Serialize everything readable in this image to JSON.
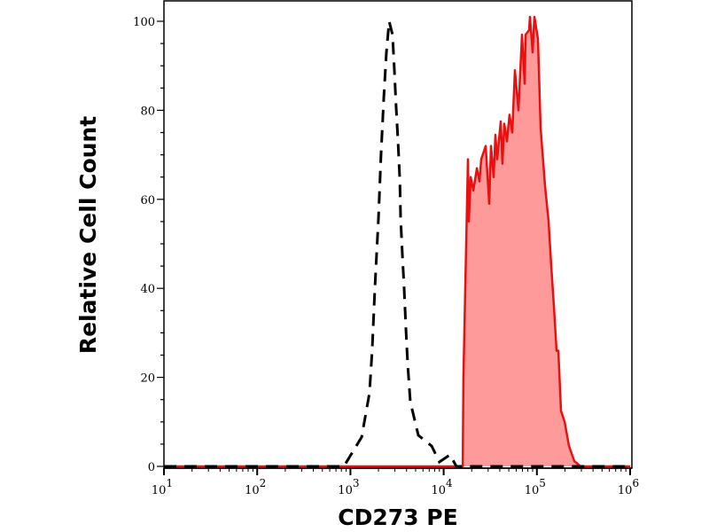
{
  "chart_data": {
    "type": "area",
    "title": "",
    "xlabel": "CD273 PE",
    "ylabel": "Relative Cell Count",
    "x_scale": "log",
    "xlim": [
      10,
      1000000
    ],
    "ylim": [
      0,
      100
    ],
    "x_ticks": [
      {
        "value": 10,
        "base": "10",
        "exp": "1"
      },
      {
        "value": 100,
        "base": "10",
        "exp": "2"
      },
      {
        "value": 1000,
        "base": "10",
        "exp": "3"
      },
      {
        "value": 10000,
        "base": "10",
        "exp": "4"
      },
      {
        "value": 100000,
        "base": "10",
        "exp": "5"
      },
      {
        "value": 1000000,
        "base": "10",
        "exp": "6"
      }
    ],
    "y_ticks": [
      "0",
      "20",
      "40",
      "60",
      "80",
      "100"
    ],
    "grid": false,
    "legend": "none",
    "series": [
      {
        "style": "dashed-line",
        "color": "#000000",
        "points": [
          [
            10,
            0
          ],
          [
            850,
            0
          ],
          [
            1320,
            6.6
          ],
          [
            1600,
            16.5
          ],
          [
            1710,
            26
          ],
          [
            1830,
            40
          ],
          [
            2000,
            56
          ],
          [
            2130,
            70
          ],
          [
            2280,
            83
          ],
          [
            2430,
            93
          ],
          [
            2600,
            100
          ],
          [
            2830,
            97
          ],
          [
            2960,
            89
          ],
          [
            3090,
            81
          ],
          [
            3240,
            73
          ],
          [
            3390,
            64
          ],
          [
            3450,
            56
          ],
          [
            3600,
            48
          ],
          [
            3770,
            40
          ],
          [
            3940,
            31
          ],
          [
            4110,
            23
          ],
          [
            4390,
            14.5
          ],
          [
            5350,
            7
          ],
          [
            7430,
            4.6
          ],
          [
            9000,
            1
          ],
          [
            11700,
            2.6
          ],
          [
            13700,
            0
          ],
          [
            1000000,
            0
          ]
        ]
      },
      {
        "style": "filled-area",
        "color": "#e81010",
        "fill": "#ff9a9a",
        "points": [
          [
            10,
            0
          ],
          [
            16000,
            0
          ],
          [
            16300,
            20
          ],
          [
            18200,
            69
          ],
          [
            18600,
            55
          ],
          [
            19500,
            65
          ],
          [
            20800,
            62
          ],
          [
            22700,
            67
          ],
          [
            24200,
            64
          ],
          [
            25300,
            69
          ],
          [
            28200,
            72
          ],
          [
            30800,
            59
          ],
          [
            32200,
            72
          ],
          [
            34400,
            65
          ],
          [
            35900,
            74.5
          ],
          [
            37500,
            69
          ],
          [
            40900,
            77.5
          ],
          [
            42700,
            68
          ],
          [
            44700,
            77
          ],
          [
            47700,
            73
          ],
          [
            50900,
            79
          ],
          [
            54400,
            75
          ],
          [
            58100,
            89
          ],
          [
            63400,
            80
          ],
          [
            69200,
            97
          ],
          [
            73900,
            86
          ],
          [
            75500,
            97
          ],
          [
            82400,
            98
          ],
          [
            84300,
            101
          ],
          [
            90000,
            93
          ],
          [
            94000,
            101
          ],
          [
            102600,
            96
          ],
          [
            109600,
            76
          ],
          [
            122200,
            63
          ],
          [
            133400,
            55
          ],
          [
            142500,
            45
          ],
          [
            152300,
            36
          ],
          [
            162600,
            26
          ],
          [
            169900,
            26
          ],
          [
            181500,
            12.5
          ],
          [
            198200,
            10
          ],
          [
            220900,
            4.6
          ],
          [
            251800,
            1.2
          ],
          [
            293600,
            0
          ],
          [
            342000,
            0
          ],
          [
            1000000,
            0
          ]
        ]
      }
    ]
  }
}
